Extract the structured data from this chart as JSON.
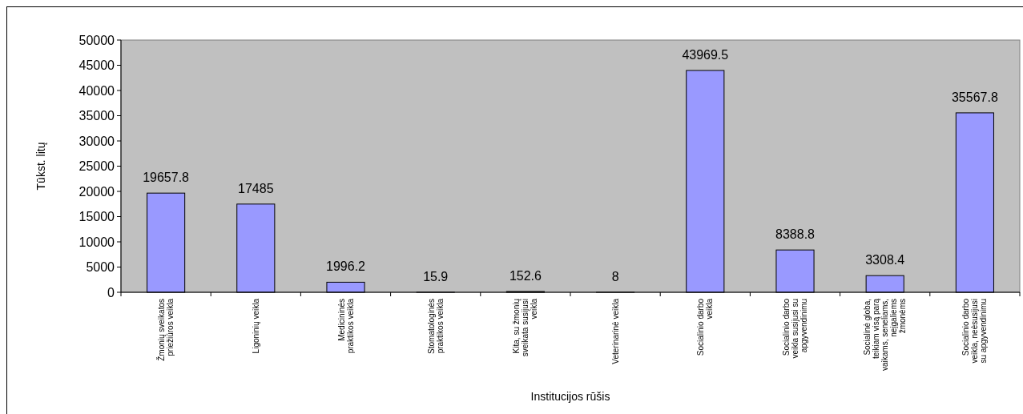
{
  "chart_data": {
    "type": "bar",
    "xlabel": "Institucijos rūšis",
    "ylabel": "Tūkst. litų",
    "categories": [
      "Žmonių sveikatos\npriežiūros veikla",
      "Ligoninių veikla",
      "Medicininės\npraktikos veikla",
      "Stomatologinės\npraktikos veikla",
      "Kita, su žmonių\nsveikata susijusi\nveikla",
      "Veterinarinė veikla",
      "Socialinio darbo\nveikla",
      "Socialinio darbo\nveikla susijusi su\napgyvendinimu",
      "Socialinė globa,\nteikiam visą parą\nvaikams, seneliams,\nneįgaliems\nžmonėms",
      "Socialinio darbo\nveikla, neėsusijusi\nsu apgyvendinimu"
    ],
    "values": [
      19657.8,
      17485,
      1996.2,
      15.9,
      152.6,
      8,
      43969.5,
      8388.8,
      3308.4,
      35567.8
    ],
    "color": "#9999ff",
    "ylim": [
      0,
      50000
    ],
    "yticks": [
      0,
      5000,
      10000,
      15000,
      20000,
      25000,
      30000,
      35000,
      40000,
      45000,
      50000
    ],
    "grid": false,
    "data_labels": true
  }
}
